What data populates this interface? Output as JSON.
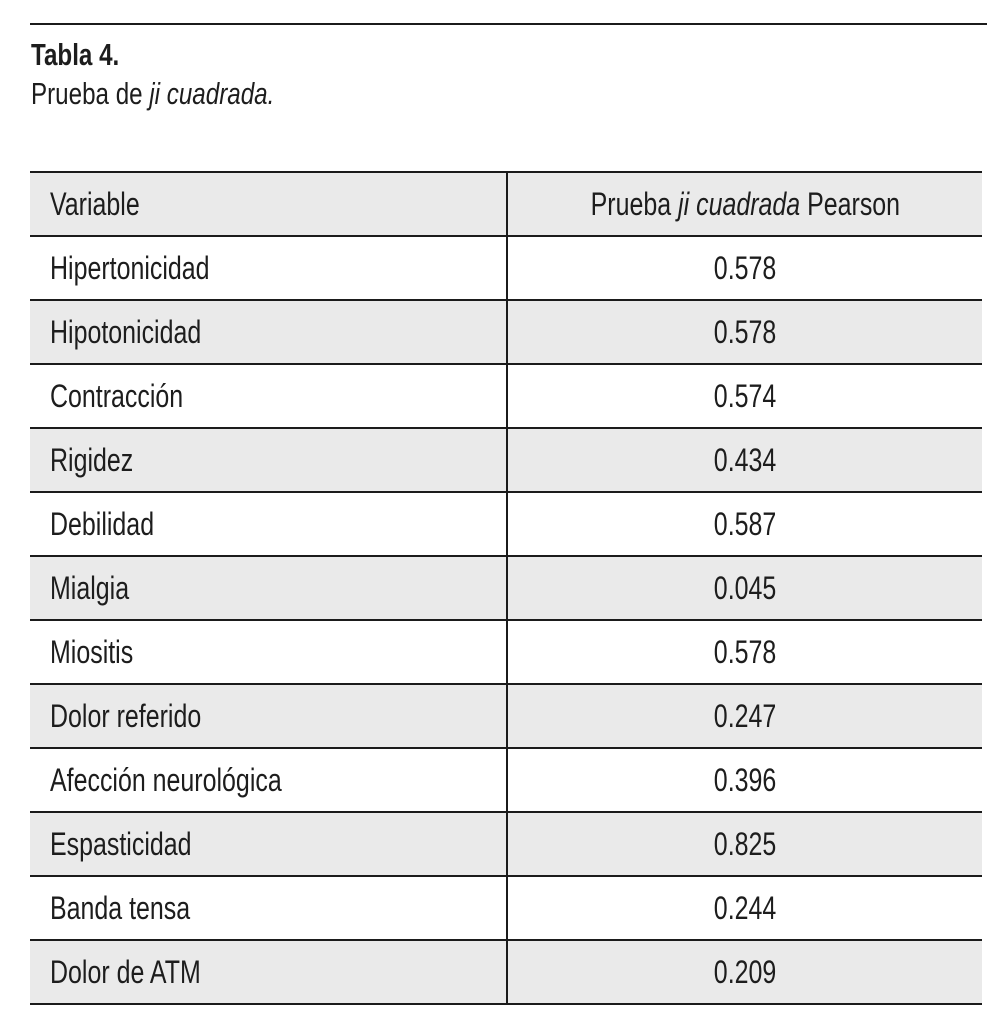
{
  "caption": {
    "label": "Tabla 4.",
    "title_roman": "Prueba de ",
    "title_italic": "ji cuadrada."
  },
  "table": {
    "header": {
      "col1": "Variable",
      "col2_roman1": "Prueba ",
      "col2_italic": "ji cuadrada",
      "col2_roman2": " Pearson"
    },
    "rows": [
      {
        "variable": "Hipertonicidad",
        "value": "0.578"
      },
      {
        "variable": "Hipotonicidad",
        "value": "0.578"
      },
      {
        "variable": "Contracción",
        "value": "0.574"
      },
      {
        "variable": "Rigidez",
        "value": "0.434"
      },
      {
        "variable": "Debilidad",
        "value": "0.587"
      },
      {
        "variable": "Mialgia",
        "value": "0.045"
      },
      {
        "variable": "Miositis",
        "value": "0.578"
      },
      {
        "variable": "Dolor referido",
        "value": "0.247"
      },
      {
        "variable": "Afección neurológica",
        "value": "0.396"
      },
      {
        "variable": "Espasticidad",
        "value": "0.825"
      },
      {
        "variable": "Banda tensa",
        "value": "0.244"
      },
      {
        "variable": "Dolor de ATM",
        "value": "0.209"
      }
    ]
  },
  "colors": {
    "stripe": "#eaeaea",
    "border": "#1b1b1b",
    "text": "#1d1d1d",
    "background": "#ffffff"
  }
}
